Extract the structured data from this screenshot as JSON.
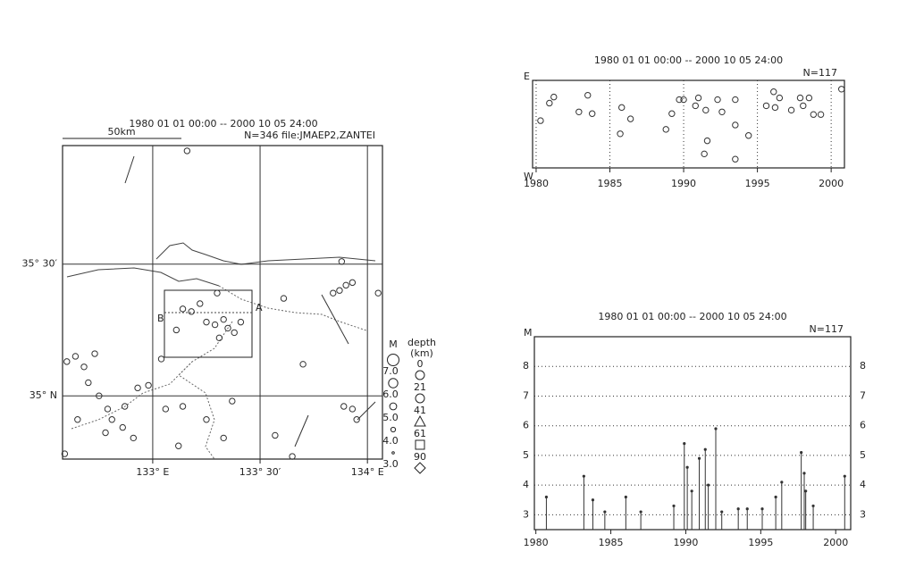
{
  "chart_data": [
    {
      "type": "scatter",
      "title": "1980 01 01 00:00 -- 2000 10 05 24:00",
      "annotation": "N=346 file:JMAEP2,ZANTEI",
      "scale_label": "50km",
      "xlim": [
        132.58,
        134.07
      ],
      "ylim": [
        34.76,
        35.95
      ],
      "xticks": [
        {
          "value": 133,
          "label": "133° E"
        },
        {
          "value": 133.5,
          "label": "133° 30′"
        },
        {
          "value": 134,
          "label": "134° E"
        }
      ],
      "yticks": [
        {
          "value": 35,
          "label": "35° N"
        },
        {
          "value": 35.5,
          "label": "35° 30′"
        }
      ],
      "grid": true,
      "color": "#333333",
      "x": [
        133.35,
        133.29,
        133.33,
        133.38,
        133.31,
        133.25,
        133.18,
        133.14,
        133.22,
        133.3,
        133.11,
        133.41,
        132.79,
        132.75,
        132.7,
        132.68,
        132.64,
        132.73,
        132.81,
        132.86,
        132.78,
        132.91,
        132.87,
        132.93,
        132.65,
        132.6,
        132.59,
        133.9,
        133.87,
        133.93,
        133.88,
        133.84,
        134.05,
        133.93,
        133.95,
        133.89,
        133.16,
        133.61,
        133.7,
        133.57,
        133.37,
        133.25,
        133.14,
        133.06,
        133.04,
        132.98,
        133.12,
        133.65,
        133.33
      ],
      "y": [
        35.257,
        35.27,
        35.29,
        35.24,
        35.22,
        35.28,
        35.32,
        35.33,
        35.35,
        35.39,
        35.25,
        35.28,
        34.95,
        35.0,
        35.05,
        35.11,
        35.15,
        35.16,
        34.91,
        34.88,
        34.86,
        34.84,
        34.96,
        35.03,
        34.91,
        35.13,
        34.78,
        35.42,
        35.4,
        35.43,
        35.51,
        35.39,
        35.39,
        34.95,
        34.91,
        34.96,
        35.93,
        35.37,
        35.12,
        34.85,
        34.98,
        34.91,
        34.96,
        34.95,
        35.14,
        35.04,
        34.81,
        34.77,
        34.84
      ],
      "magnitude_legend": {
        "title": "M",
        "values": [
          {
            "value": 7,
            "label": "7.0"
          },
          {
            "value": 6,
            "label": "6.0"
          },
          {
            "value": 5,
            "label": "5.0"
          },
          {
            "value": 4,
            "label": "4.0"
          },
          {
            "value": 3,
            "label": "3.0"
          }
        ]
      },
      "depth_legend": {
        "title": "depth",
        "unit": "(km)",
        "values": [
          0,
          21,
          41,
          61,
          90
        ],
        "shapes": [
          "circle",
          "circle",
          "triangle",
          "square",
          "diamond"
        ]
      }
    },
    {
      "type": "scatter",
      "title": "1980 01 01 00:00 -- 2000 10 05 24:00",
      "annotation": "N=117",
      "ylabel_top": "E",
      "ylabel_bottom": "W",
      "xlim": [
        1979.76,
        2000.9
      ],
      "ylim": [
        0,
        1
      ],
      "xticks": [
        1980,
        1985,
        1990,
        1995,
        2000
      ],
      "grid": true,
      "color": "#333333",
      "x": [
        1980.3,
        1980.9,
        1981.2,
        1982.9,
        1983.5,
        1983.8,
        1985.8,
        1985.7,
        1986.4,
        1988.8,
        1989.2,
        1989.7,
        1990.0,
        1990.8,
        1991.0,
        1991.5,
        1991.6,
        1991.4,
        1992.3,
        1992.6,
        1993.5,
        1993.5,
        1993.5,
        1994.4,
        1995.6,
        1996.2,
        1996.1,
        1996.5,
        1997.3,
        1997.9,
        1998.1,
        1998.8,
        1999.3,
        1998.5,
        2000.7
      ],
      "y": [
        0.54,
        0.74,
        0.81,
        0.64,
        0.83,
        0.62,
        0.69,
        0.39,
        0.56,
        0.44,
        0.62,
        0.78,
        0.78,
        0.71,
        0.8,
        0.66,
        0.31,
        0.16,
        0.78,
        0.64,
        0.78,
        0.49,
        0.1,
        0.37,
        0.71,
        0.69,
        0.87,
        0.8,
        0.66,
        0.8,
        0.71,
        0.61,
        0.61,
        0.8,
        0.9
      ]
    },
    {
      "type": "stem",
      "title": "1980 01 01 00:00 -- 2000 10 05 24:00",
      "annotation": "N=117",
      "ylabel": "M",
      "xlim": [
        1979.9,
        2001
      ],
      "ylim": [
        2.5,
        9
      ],
      "xticks": [
        1980,
        1985,
        1990,
        1995,
        2000
      ],
      "yticks": [
        3,
        4,
        5,
        6,
        7,
        8
      ],
      "grid": true,
      "color": "#333333",
      "x": [
        1980.7,
        1983.2,
        1983.8,
        1986.0,
        1989.2,
        1989.9,
        1990.1,
        1990.4,
        1990.9,
        1991.3,
        1991.5,
        1992.0,
        1992.4,
        1993.5,
        1994.1,
        1996.0,
        1996.4,
        1997.7,
        1997.9,
        1998.0,
        1998.5,
        2000.6,
        1984.6,
        1987.0,
        1995.1
      ],
      "values": [
        3.6,
        4.3,
        3.5,
        3.6,
        3.3,
        5.4,
        4.6,
        3.8,
        4.9,
        5.2,
        4.0,
        5.9,
        3.1,
        3.2,
        3.2,
        3.6,
        4.1,
        5.1,
        4.4,
        3.8,
        3.3,
        4.3,
        3.1,
        3.1,
        3.2
      ]
    }
  ]
}
